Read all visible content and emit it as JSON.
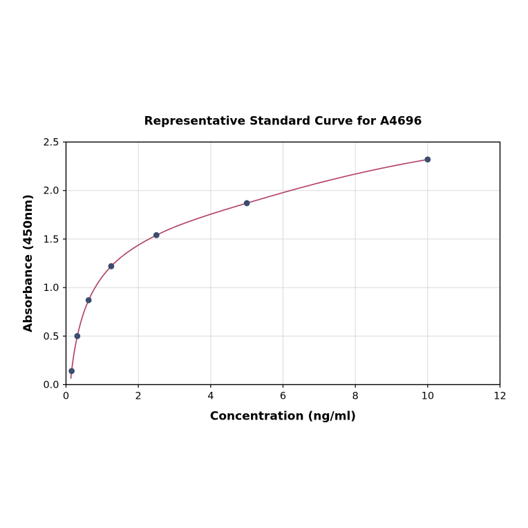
{
  "page": {
    "background": "#ffffff"
  },
  "chart_data": {
    "type": "scatter",
    "title": "Representative Standard Curve for A4696",
    "xlabel": "Concentration (ng/ml)",
    "ylabel": "Absorbance (450nm)",
    "xlim": [
      0,
      12
    ],
    "ylim": [
      0,
      2.5
    ],
    "x_ticks": [
      0,
      2,
      4,
      6,
      8,
      10,
      12
    ],
    "x_tick_labels": [
      "0",
      "2",
      "4",
      "6",
      "8",
      "10",
      "12"
    ],
    "y_ticks": [
      0,
      0.5,
      1,
      1.5,
      2,
      2.5
    ],
    "y_tick_labels": [
      "0.0",
      "0.5",
      "1.0",
      "1.5",
      "2.0",
      "2.5"
    ],
    "grid": true,
    "legend": "none",
    "points": [
      {
        "x": 0.156,
        "y": 0.14
      },
      {
        "x": 0.313,
        "y": 0.5
      },
      {
        "x": 0.625,
        "y": 0.87
      },
      {
        "x": 1.25,
        "y": 1.22
      },
      {
        "x": 2.5,
        "y": 1.54
      },
      {
        "x": 5,
        "y": 1.87
      },
      {
        "x": 10,
        "y": 2.32
      }
    ],
    "curve": {
      "style": "smooth-fit-through-points",
      "x_start": 0.135,
      "x_end": 10
    },
    "colors": {
      "curve": "#b5446b",
      "points": "#3b4d6f",
      "grid": "#d9d9d9",
      "frame": "#000000",
      "text": "#000000"
    }
  }
}
